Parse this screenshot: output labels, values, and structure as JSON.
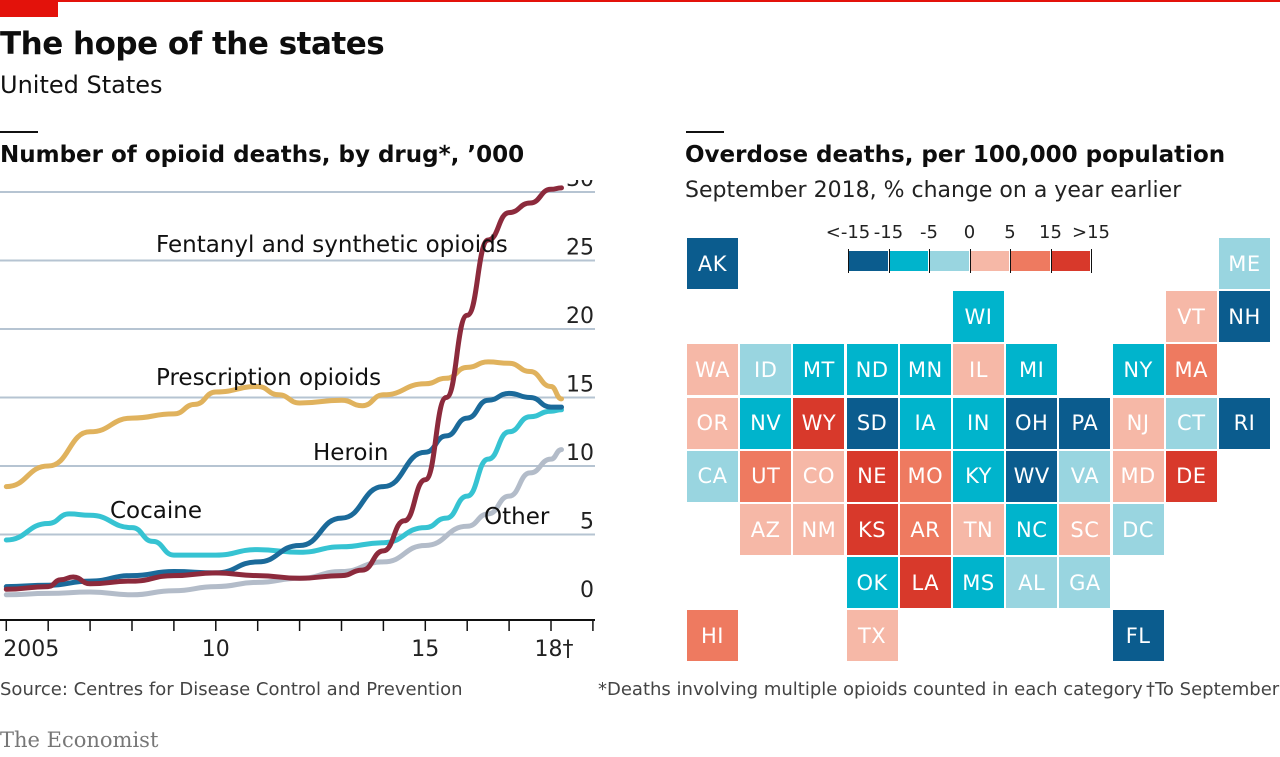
{
  "header": {
    "title": "The hope of the states",
    "subtitle": "United States"
  },
  "left_panel": {
    "title": "Number of opioid deaths, by drug*, ’000"
  },
  "right_panel": {
    "title": "Overdose deaths, per 100,000 population",
    "subtitle": "September 2018, % change on a year earlier"
  },
  "footer": {
    "source": "Source: Centres for Disease Control and Prevention",
    "note": "*Deaths involving multiple opioids counted in each category",
    "dagger_note": "†To September",
    "brand": "The Economist"
  },
  "colors": {
    "accent_red": "#e3120b",
    "fentanyl": "#8c2a3c",
    "prescription": "#e0b25d",
    "heroin": "#1b6a9a",
    "cocaine": "#36c3d2",
    "other": "#b3bcc9",
    "bin_lt_minus15": "#0b5c8e",
    "bin_minus15_minus5": "#00b4cc",
    "bin_minus5_0": "#99d5e0",
    "bin_0_5": "#f6b8a7",
    "bin_5_15": "#ee7a60",
    "bin_gt15": "#d8392b"
  },
  "chart_data": [
    {
      "type": "line",
      "title": "Number of opioid deaths, by drug*, ’000",
      "x_tick_labels": [
        "2005",
        "10",
        "15",
        "18†"
      ],
      "y_tick_labels": [
        "0",
        "5",
        "10",
        "15",
        "20",
        "25",
        "30"
      ],
      "ylim": [
        0,
        30
      ],
      "xlim": [
        2004.85,
        2019.05
      ],
      "grid": true,
      "series": [
        {
          "name": "Fentanyl and synthetic opioids",
          "color": "#8c2a3c",
          "x": [
            2005,
            2006,
            2006.3,
            2006.6,
            2007,
            2008,
            2009,
            2010,
            2011,
            2012,
            2013,
            2013.5,
            2014,
            2014.5,
            2015,
            2015.5,
            2016,
            2016.5,
            2017,
            2017.5,
            2018,
            2018.25
          ],
          "y": [
            1.0,
            1.2,
            1.7,
            1.9,
            1.4,
            1.6,
            2.0,
            2.2,
            2.0,
            1.8,
            2.0,
            2.4,
            3.8,
            6.0,
            9.0,
            15.0,
            21.0,
            26.5,
            28.5,
            29.2,
            30.2,
            30.3
          ]
        },
        {
          "name": "Prescription opioids",
          "color": "#e0b25d",
          "x": [
            2005,
            2006,
            2007,
            2008,
            2009,
            2009.5,
            2010,
            2011,
            2011.5,
            2012,
            2013,
            2013.5,
            2014,
            2015,
            2015.5,
            2016,
            2016.5,
            2017,
            2017.5,
            2018,
            2018.25
          ],
          "y": [
            8.5,
            10.0,
            12.5,
            13.5,
            13.8,
            14.5,
            15.4,
            15.8,
            15.2,
            14.6,
            14.8,
            14.4,
            15.2,
            16.0,
            16.4,
            17.2,
            17.6,
            17.5,
            16.9,
            15.8,
            14.9
          ]
        },
        {
          "name": "Heroin",
          "color": "#1b6a9a",
          "x": [
            2005,
            2006,
            2007,
            2008,
            2009,
            2010,
            2011,
            2012,
            2013,
            2014,
            2015,
            2015.5,
            2016,
            2016.5,
            2017,
            2017.5,
            2018,
            2018.25
          ],
          "y": [
            1.2,
            1.3,
            1.6,
            2.0,
            2.3,
            2.2,
            3.0,
            4.2,
            6.2,
            8.5,
            11.0,
            12.2,
            13.5,
            14.8,
            15.3,
            15.0,
            14.3,
            14.3
          ]
        },
        {
          "name": "Cocaine",
          "color": "#36c3d2",
          "x": [
            2005,
            2006,
            2006.5,
            2007,
            2008,
            2008.5,
            2009,
            2010,
            2011,
            2012,
            2013,
            2014,
            2015,
            2015.5,
            2016,
            2016.5,
            2017,
            2017.5,
            2018,
            2018.25
          ],
          "y": [
            4.6,
            5.8,
            6.5,
            6.4,
            5.5,
            4.5,
            3.5,
            3.5,
            3.9,
            3.7,
            4.1,
            4.4,
            5.5,
            6.2,
            7.8,
            10.5,
            12.5,
            13.6,
            14.0,
            14.1
          ]
        },
        {
          "name": "Other",
          "color": "#b3bcc9",
          "x": [
            2005,
            2006,
            2007,
            2008,
            2009,
            2010,
            2011,
            2012,
            2013,
            2014,
            2015,
            2016,
            2016.5,
            2017,
            2017.5,
            2018,
            2018.25
          ],
          "y": [
            0.6,
            0.7,
            0.8,
            0.6,
            0.9,
            1.2,
            1.5,
            1.8,
            2.3,
            3.0,
            4.2,
            5.6,
            6.5,
            7.8,
            9.5,
            10.5,
            11.2
          ]
        }
      ]
    },
    {
      "type": "heatmap",
      "title": "Overdose deaths, per 100,000 population",
      "subtitle": "September 2018, % change on a year earlier",
      "legend": {
        "ticks": [
          "<-15",
          "-15",
          "-5",
          "0",
          "5",
          "15",
          ">15"
        ],
        "bins": [
          "bin_lt_minus15",
          "bin_minus15_minus5",
          "bin_minus5_0",
          "bin_0_5",
          "bin_5_15",
          "bin_gt15"
        ]
      },
      "states": [
        {
          "code": "AK",
          "row": 0,
          "col": 0,
          "bin": "bin_lt_minus15"
        },
        {
          "code": "ME",
          "row": 0,
          "col": 10,
          "bin": "bin_minus5_0"
        },
        {
          "code": "WI",
          "row": 1,
          "col": 5,
          "bin": "bin_minus15_minus5"
        },
        {
          "code": "VT",
          "row": 1,
          "col": 9,
          "bin": "bin_0_5"
        },
        {
          "code": "NH",
          "row": 1,
          "col": 10,
          "bin": "bin_lt_minus15"
        },
        {
          "code": "WA",
          "row": 2,
          "col": 0,
          "bin": "bin_0_5"
        },
        {
          "code": "ID",
          "row": 2,
          "col": 1,
          "bin": "bin_minus5_0"
        },
        {
          "code": "MT",
          "row": 2,
          "col": 2,
          "bin": "bin_minus15_minus5"
        },
        {
          "code": "ND",
          "row": 2,
          "col": 3,
          "bin": "bin_minus15_minus5"
        },
        {
          "code": "MN",
          "row": 2,
          "col": 4,
          "bin": "bin_minus15_minus5"
        },
        {
          "code": "IL",
          "row": 2,
          "col": 5,
          "bin": "bin_0_5"
        },
        {
          "code": "MI",
          "row": 2,
          "col": 6,
          "bin": "bin_minus15_minus5"
        },
        {
          "code": "NY",
          "row": 2,
          "col": 8,
          "bin": "bin_minus15_minus5"
        },
        {
          "code": "MA",
          "row": 2,
          "col": 9,
          "bin": "bin_5_15"
        },
        {
          "code": "OR",
          "row": 3,
          "col": 0,
          "bin": "bin_0_5"
        },
        {
          "code": "NV",
          "row": 3,
          "col": 1,
          "bin": "bin_minus15_minus5"
        },
        {
          "code": "WY",
          "row": 3,
          "col": 2,
          "bin": "bin_gt15"
        },
        {
          "code": "SD",
          "row": 3,
          "col": 3,
          "bin": "bin_lt_minus15"
        },
        {
          "code": "IA",
          "row": 3,
          "col": 4,
          "bin": "bin_minus15_minus5"
        },
        {
          "code": "IN",
          "row": 3,
          "col": 5,
          "bin": "bin_minus15_minus5"
        },
        {
          "code": "OH",
          "row": 3,
          "col": 6,
          "bin": "bin_lt_minus15"
        },
        {
          "code": "PA",
          "row": 3,
          "col": 7,
          "bin": "bin_lt_minus15"
        },
        {
          "code": "NJ",
          "row": 3,
          "col": 8,
          "bin": "bin_0_5"
        },
        {
          "code": "CT",
          "row": 3,
          "col": 9,
          "bin": "bin_minus5_0"
        },
        {
          "code": "RI",
          "row": 3,
          "col": 10,
          "bin": "bin_lt_minus15"
        },
        {
          "code": "CA",
          "row": 4,
          "col": 0,
          "bin": "bin_minus5_0"
        },
        {
          "code": "UT",
          "row": 4,
          "col": 1,
          "bin": "bin_5_15"
        },
        {
          "code": "CO",
          "row": 4,
          "col": 2,
          "bin": "bin_0_5"
        },
        {
          "code": "NE",
          "row": 4,
          "col": 3,
          "bin": "bin_gt15"
        },
        {
          "code": "MO",
          "row": 4,
          "col": 4,
          "bin": "bin_5_15"
        },
        {
          "code": "KY",
          "row": 4,
          "col": 5,
          "bin": "bin_minus15_minus5"
        },
        {
          "code": "WV",
          "row": 4,
          "col": 6,
          "bin": "bin_lt_minus15"
        },
        {
          "code": "VA",
          "row": 4,
          "col": 7,
          "bin": "bin_minus5_0"
        },
        {
          "code": "MD",
          "row": 4,
          "col": 8,
          "bin": "bin_0_5"
        },
        {
          "code": "DE",
          "row": 4,
          "col": 9,
          "bin": "bin_gt15"
        },
        {
          "code": "AZ",
          "row": 5,
          "col": 1,
          "bin": "bin_0_5"
        },
        {
          "code": "NM",
          "row": 5,
          "col": 2,
          "bin": "bin_0_5"
        },
        {
          "code": "KS",
          "row": 5,
          "col": 3,
          "bin": "bin_gt15"
        },
        {
          "code": "AR",
          "row": 5,
          "col": 4,
          "bin": "bin_5_15"
        },
        {
          "code": "TN",
          "row": 5,
          "col": 5,
          "bin": "bin_0_5"
        },
        {
          "code": "NC",
          "row": 5,
          "col": 6,
          "bin": "bin_minus15_minus5"
        },
        {
          "code": "SC",
          "row": 5,
          "col": 7,
          "bin": "bin_0_5"
        },
        {
          "code": "DC",
          "row": 5,
          "col": 8,
          "bin": "bin_minus5_0"
        },
        {
          "code": "OK",
          "row": 6,
          "col": 3,
          "bin": "bin_minus15_minus5"
        },
        {
          "code": "LA",
          "row": 6,
          "col": 4,
          "bin": "bin_gt15"
        },
        {
          "code": "MS",
          "row": 6,
          "col": 5,
          "bin": "bin_minus15_minus5"
        },
        {
          "code": "AL",
          "row": 6,
          "col": 6,
          "bin": "bin_minus5_0"
        },
        {
          "code": "GA",
          "row": 6,
          "col": 7,
          "bin": "bin_minus5_0"
        },
        {
          "code": "HI",
          "row": 7,
          "col": 0,
          "bin": "bin_5_15"
        },
        {
          "code": "TX",
          "row": 7,
          "col": 3,
          "bin": "bin_0_5"
        },
        {
          "code": "FL",
          "row": 7,
          "col": 8,
          "bin": "bin_lt_minus15"
        }
      ]
    }
  ]
}
